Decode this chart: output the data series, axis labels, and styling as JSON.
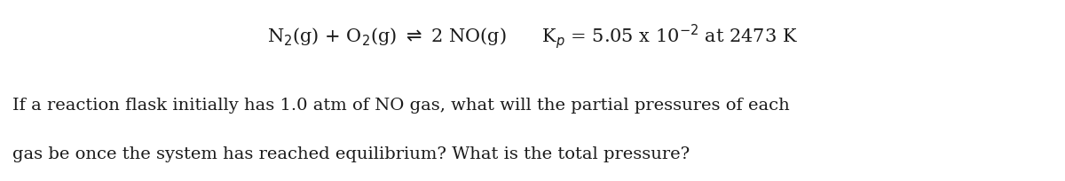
{
  "background_color": "#ffffff",
  "line1": "N$_2$(g) + O$_2$(g) $\\rightleftharpoons$ 2 NO(g)      K$_p$ = 5.05 x 10$^{-2}$ at 2473 K",
  "line2": "If a reaction flask initially has 1.0 atm of NO gas, what will the partial pressures of each",
  "line3": "gas be once the system has reached equilibrium? What is the total pressure?",
  "font_size_line1": 15,
  "font_size_line2": 14,
  "text_color": "#1a1a1a",
  "background_color2": "#ffffff"
}
